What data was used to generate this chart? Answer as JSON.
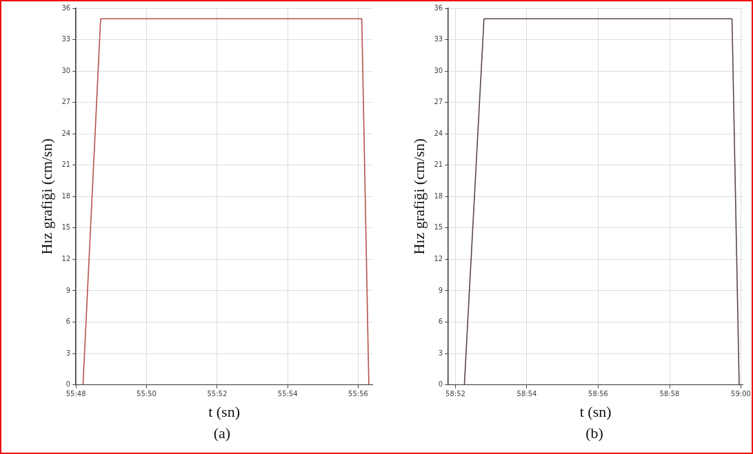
{
  "chart_data": [
    {
      "type": "line",
      "xlabel": "t (sn)",
      "ylabel": "Hız grafiği (cm/sn)",
      "annotations": [
        "(a)"
      ],
      "xlim": [
        3348,
        3356.4
      ],
      "xticks": [
        {
          "value": 3348,
          "label": "55:48"
        },
        {
          "value": 3350,
          "label": "55:50"
        },
        {
          "value": 3352,
          "label": "55:52"
        },
        {
          "value": 3354,
          "label": "55:54"
        },
        {
          "value": 3356,
          "label": "55:56"
        }
      ],
      "ylim": [
        0,
        36
      ],
      "yticks": [
        0,
        3,
        6,
        9,
        12,
        15,
        18,
        21,
        24,
        27,
        30,
        33,
        36
      ],
      "grid": true,
      "series": [
        {
          "color": "#b5504a",
          "x": [
            3348.2,
            3348.7,
            3356.1,
            3356.3
          ],
          "values": [
            0,
            35,
            35,
            0
          ]
        }
      ]
    },
    {
      "type": "line",
      "xlabel": "t (sn)",
      "ylabel": "Hız grafiği (cm/sn)",
      "annotations": [
        "(b)"
      ],
      "xlim": [
        3531.8,
        3540.05
      ],
      "xticks": [
        {
          "value": 3532,
          "label": "58:52"
        },
        {
          "value": 3534,
          "label": "58:54"
        },
        {
          "value": 3536,
          "label": "58:56"
        },
        {
          "value": 3538,
          "label": "58:58"
        },
        {
          "value": 3540,
          "label": "59:00"
        }
      ],
      "ylim": [
        0,
        36
      ],
      "yticks": [
        0,
        3,
        6,
        9,
        12,
        15,
        18,
        21,
        24,
        27,
        30,
        33,
        36
      ],
      "grid": true,
      "series": [
        {
          "color": "#5a4646",
          "x": [
            3532.25,
            3532.8,
            3539.75,
            3539.95
          ],
          "values": [
            0,
            35,
            35,
            0
          ]
        }
      ]
    }
  ]
}
